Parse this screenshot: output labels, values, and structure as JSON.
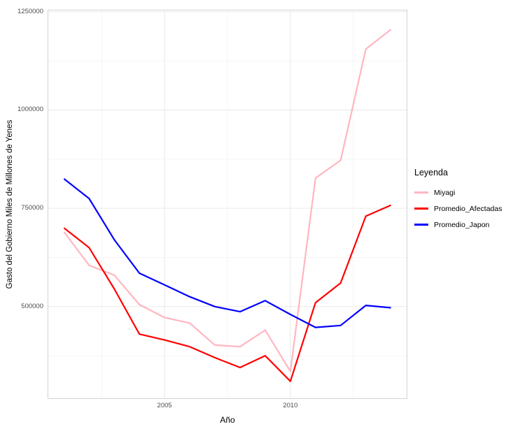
{
  "chart_data": {
    "type": "line",
    "title": "",
    "xlabel": "Año",
    "ylabel": "Gasto del Gobierno Miles de Millones de Yenes",
    "legend_title": "Leyenda",
    "legend_position": "right",
    "grid": true,
    "x": [
      2001,
      2002,
      2003,
      2004,
      2005,
      2006,
      2007,
      2008,
      2009,
      2010,
      2011,
      2012,
      2013,
      2014
    ],
    "series": [
      {
        "name": "Miyagi",
        "color": "#FFB6C1",
        "values": [
          690000,
          605000,
          580000,
          505000,
          472000,
          458000,
          402000,
          398000,
          440000,
          335000,
          827000,
          872000,
          1155000,
          1205000
        ]
      },
      {
        "name": "Promedio_Afectadas",
        "color": "#FF0000",
        "values": [
          700000,
          650000,
          545000,
          430000,
          415000,
          398000,
          370000,
          345000,
          375000,
          310000,
          510000,
          560000,
          730000,
          758000
        ]
      },
      {
        "name": "Promedio_Japon",
        "color": "#0000FF",
        "values": [
          825000,
          775000,
          670000,
          585000,
          555000,
          525000,
          500000,
          487000,
          515000,
          480000,
          447000,
          452000,
          503000,
          497000
        ]
      }
    ],
    "xlim": [
      2000.35,
      2014.65
    ],
    "ylim": [
      265000,
      1255000
    ],
    "x_ticks": [
      2005,
      2010
    ],
    "x_tick_labels": [
      "2005",
      "2010"
    ],
    "x_minor_ticks": [
      2002.5,
      2007.5,
      2012.5
    ],
    "y_ticks": [
      500000,
      750000,
      1000000,
      1250000
    ],
    "y_tick_labels": [
      "500000",
      "750000",
      "1000000",
      "1250000"
    ],
    "y_minor_ticks": [
      375000,
      625000,
      875000,
      1125000
    ],
    "colors": {
      "major_grid": "#E9E9E9",
      "minor_grid": "#F5F5F5",
      "panel_border": "#D3D3D3",
      "tick_text": "#4d4d4d"
    }
  }
}
